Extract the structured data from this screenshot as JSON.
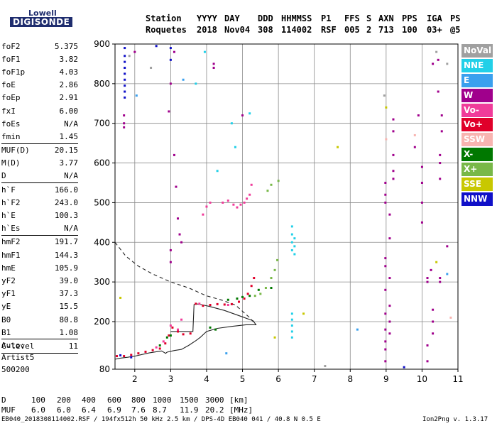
{
  "logo": {
    "line1": "Lowell",
    "line2": "DIGISONDE"
  },
  "header": {
    "labels": [
      "Station",
      "YYYY",
      "DAY",
      "DDD",
      "HHMMSS",
      "P1",
      "FFS",
      "S",
      "AXN",
      "PPS",
      "IGA",
      "PS"
    ],
    "values": [
      "Roquetes",
      "2018",
      "Nov04",
      "308",
      "114002",
      "RSF",
      "005",
      "2",
      "713",
      "100",
      "03+",
      "@5"
    ]
  },
  "params": [
    {
      "name": "foF2",
      "value": "5.375"
    },
    {
      "name": "foF1",
      "value": "3.82"
    },
    {
      "name": "foF1p",
      "value": "4.03"
    },
    {
      "name": "foE",
      "value": "2.86"
    },
    {
      "name": "foEp",
      "value": "2.91"
    },
    {
      "name": "fxI",
      "value": "6.00"
    },
    {
      "name": "foEs",
      "value": "N/A"
    },
    {
      "name": "fmin",
      "value": "1.45",
      "sep": true
    },
    {
      "name": "MUF(D)",
      "value": "20.15"
    },
    {
      "name": "M(D)",
      "value": "3.77"
    },
    {
      "name": "D",
      "value": "N/A",
      "sep": true
    },
    {
      "name": "h`F",
      "value": "166.0"
    },
    {
      "name": "h`F2",
      "value": "243.0"
    },
    {
      "name": "h`E",
      "value": "100.3"
    },
    {
      "name": "h`Es",
      "value": "N/A",
      "sep": true
    },
    {
      "name": "hmF2",
      "value": "191.7"
    },
    {
      "name": "hmF1",
      "value": "144.3"
    },
    {
      "name": "hmE",
      "value": "105.9"
    },
    {
      "name": "yF2",
      "value": "39.0"
    },
    {
      "name": "yF1",
      "value": "37.3"
    },
    {
      "name": "yE",
      "value": "15.5"
    },
    {
      "name": "B0",
      "value": "80.8"
    },
    {
      "name": "B1",
      "value": "1.08",
      "sep": true
    },
    {
      "name": "C-level",
      "value": "11",
      "sep": true
    }
  ],
  "auto": {
    "line1": "Auto:",
    "line2": "Artist5",
    "line3": "500200"
  },
  "dmuf": {
    "d_label": "D",
    "d_values": [
      "100",
      "200",
      "400",
      "600",
      "800",
      "1000",
      "1500",
      "3000"
    ],
    "d_unit": "[km]",
    "muf_label": "MUF",
    "muf_values": [
      "6.0",
      "6.0",
      "6.4",
      "6.9",
      "7.6",
      "8.7",
      "11.9",
      "20.2"
    ],
    "muf_unit": "[MHz]"
  },
  "footer": {
    "left": "EB040_2018308114002.RSF / 194fx512h 50 kHz 2.5 km / DPS-4D EB040 041 / 40.8 N 0.5 E",
    "right": "Ion2Png v. 1.3.17"
  },
  "legend": [
    {
      "label": "NoVal",
      "color": "#a0a0a0"
    },
    {
      "label": "NNE",
      "color": "#22d0e8"
    },
    {
      "label": "E",
      "color": "#3aa0ee"
    },
    {
      "label": "W",
      "color": "#a0008c"
    },
    {
      "label": "Vo-",
      "color": "#f03c9a"
    },
    {
      "label": "Vo+",
      "color": "#e0002a"
    },
    {
      "label": "SSW",
      "color": "#f8b4b0"
    },
    {
      "label": "X-",
      "color": "#007800"
    },
    {
      "label": "X+",
      "color": "#78b848"
    },
    {
      "label": "SSE",
      "color": "#c8c800"
    },
    {
      "label": "NNW",
      "color": "#1010c8"
    }
  ],
  "chart_data": {
    "type": "scatter",
    "xlim": [
      1.45,
      11.0
    ],
    "ylim": [
      80,
      900
    ],
    "x_ticks": [
      2,
      3,
      4,
      5,
      6,
      7,
      8,
      9,
      10,
      11
    ],
    "y_ticks": [
      80,
      200,
      300,
      400,
      500,
      600,
      700,
      800,
      900
    ],
    "grid": true,
    "series": [
      {
        "color": "#e0002a",
        "points": [
          [
            1.5,
            113
          ],
          [
            1.7,
            113
          ],
          [
            1.9,
            116
          ],
          [
            2.1,
            120
          ],
          [
            2.3,
            124
          ],
          [
            2.5,
            128
          ],
          [
            2.7,
            132
          ],
          [
            2.85,
            145
          ],
          [
            2.95,
            165
          ],
          [
            3.05,
            185
          ],
          [
            3.2,
            175
          ],
          [
            3.35,
            168
          ],
          [
            3.55,
            170
          ],
          [
            3.7,
            245
          ],
          [
            3.9,
            240
          ],
          [
            4.1,
            242
          ],
          [
            4.3,
            244
          ],
          [
            4.5,
            243
          ],
          [
            4.7,
            244
          ],
          [
            4.9,
            250
          ],
          [
            5.05,
            258
          ],
          [
            5.15,
            270
          ],
          [
            5.25,
            290
          ],
          [
            5.32,
            310
          ]
        ]
      },
      {
        "color": "#f03c9a",
        "points": [
          [
            2.6,
            135
          ],
          [
            2.8,
            150
          ],
          [
            3.0,
            190
          ],
          [
            3.2,
            180
          ],
          [
            3.3,
            205
          ],
          [
            3.8,
            245
          ],
          [
            4.6,
            242
          ],
          [
            4.85,
            488
          ],
          [
            4.95,
            495
          ],
          [
            5.05,
            500
          ],
          [
            5.12,
            510
          ],
          [
            5.2,
            520
          ],
          [
            5.25,
            545
          ],
          [
            4.45,
            500
          ],
          [
            4.6,
            505
          ],
          [
            4.75,
            495
          ],
          [
            3.9,
            470
          ],
          [
            4.0,
            490
          ],
          [
            4.1,
            500
          ]
        ]
      },
      {
        "color": "#007800",
        "points": [
          [
            2.7,
            140
          ],
          [
            2.9,
            160
          ],
          [
            3.0,
            165
          ],
          [
            4.1,
            185
          ],
          [
            4.25,
            180
          ],
          [
            4.6,
            255
          ],
          [
            4.85,
            258
          ],
          [
            5.0,
            262
          ],
          [
            5.2,
            265
          ],
          [
            5.45,
            280
          ],
          [
            5.8,
            285
          ]
        ]
      },
      {
        "color": "#78b848",
        "points": [
          [
            5.35,
            265
          ],
          [
            5.5,
            270
          ],
          [
            5.65,
            285
          ],
          [
            5.8,
            310
          ],
          [
            5.9,
            330
          ],
          [
            5.97,
            355
          ],
          [
            5.7,
            530
          ],
          [
            5.8,
            545
          ],
          [
            6.0,
            555
          ]
        ]
      },
      {
        "color": "#22d0e8",
        "points": [
          [
            6.38,
            160
          ],
          [
            6.38,
            175
          ],
          [
            6.38,
            190
          ],
          [
            6.38,
            205
          ],
          [
            6.38,
            220
          ],
          [
            6.38,
            380
          ],
          [
            6.38,
            400
          ],
          [
            6.38,
            420
          ],
          [
            6.38,
            440
          ],
          [
            6.45,
            370
          ],
          [
            6.45,
            390
          ],
          [
            6.45,
            410
          ],
          [
            5.2,
            725
          ],
          [
            4.8,
            640
          ],
          [
            4.7,
            700
          ],
          [
            4.3,
            580
          ],
          [
            3.7,
            800
          ],
          [
            3.95,
            880
          ]
        ]
      },
      {
        "color": "#a0008c",
        "points": [
          [
            8.98,
            100
          ],
          [
            8.98,
            130
          ],
          [
            8.98,
            150
          ],
          [
            8.98,
            180
          ],
          [
            8.98,
            220
          ],
          [
            8.98,
            280
          ],
          [
            8.98,
            340
          ],
          [
            8.98,
            360
          ],
          [
            8.98,
            500
          ],
          [
            8.98,
            520
          ],
          [
            8.98,
            550
          ],
          [
            9.1,
            170
          ],
          [
            9.1,
            200
          ],
          [
            9.1,
            240
          ],
          [
            9.1,
            310
          ],
          [
            9.1,
            410
          ],
          [
            9.1,
            470
          ],
          [
            9.2,
            560
          ],
          [
            9.2,
            580
          ],
          [
            9.2,
            620
          ],
          [
            9.2,
            680
          ],
          [
            9.2,
            710
          ],
          [
            10.0,
            590
          ],
          [
            10.0,
            550
          ],
          [
            10.0,
            500
          ],
          [
            10.0,
            450
          ],
          [
            10.15,
            300
          ],
          [
            10.15,
            310
          ],
          [
            10.15,
            100
          ],
          [
            10.15,
            140
          ],
          [
            10.3,
            170
          ],
          [
            10.3,
            200
          ],
          [
            10.3,
            230
          ],
          [
            10.25,
            330
          ],
          [
            10.5,
            300
          ],
          [
            10.5,
            310
          ],
          [
            10.5,
            560
          ],
          [
            10.5,
            600
          ],
          [
            10.5,
            620
          ],
          [
            10.55,
            680
          ],
          [
            10.55,
            720
          ],
          [
            10.45,
            780
          ],
          [
            10.45,
            860
          ],
          [
            10.7,
            390
          ],
          [
            10.3,
            850
          ],
          [
            9.9,
            720
          ],
          [
            9.8,
            640
          ],
          [
            1.7,
            700
          ],
          [
            1.7,
            690
          ],
          [
            1.7,
            720
          ],
          [
            3.1,
            620
          ],
          [
            3.15,
            540
          ],
          [
            3.2,
            460
          ],
          [
            3.25,
            420
          ],
          [
            3.3,
            400
          ],
          [
            3.0,
            380
          ],
          [
            3.0,
            350
          ],
          [
            4.2,
            850
          ],
          [
            4.2,
            840
          ],
          [
            5.0,
            720
          ],
          [
            2.95,
            730
          ],
          [
            3.0,
            800
          ],
          [
            3.1,
            880
          ],
          [
            2.0,
            880
          ]
        ]
      },
      {
        "color": "#1010c8",
        "points": [
          [
            1.72,
            890
          ],
          [
            1.72,
            870
          ],
          [
            1.72,
            855
          ],
          [
            1.72,
            840
          ],
          [
            1.72,
            825
          ],
          [
            1.72,
            810
          ],
          [
            1.72,
            795
          ],
          [
            1.72,
            780
          ],
          [
            1.72,
            765
          ],
          [
            3.0,
            890
          ],
          [
            3.0,
            860
          ],
          [
            2.6,
            895
          ],
          [
            9.5,
            85
          ],
          [
            1.9,
            110
          ],
          [
            1.6,
            115
          ]
        ]
      },
      {
        "color": "#a0a0a0",
        "points": [
          [
            2.45,
            840
          ],
          [
            1.85,
            870
          ],
          [
            8.95,
            770
          ],
          [
            10.4,
            880
          ],
          [
            7.3,
            88
          ],
          [
            10.7,
            850
          ]
        ]
      },
      {
        "color": "#c8c800",
        "points": [
          [
            9.0,
            740
          ],
          [
            7.65,
            640
          ],
          [
            1.6,
            260
          ],
          [
            5.9,
            160
          ],
          [
            6.7,
            220
          ],
          [
            10.4,
            350
          ]
        ]
      },
      {
        "color": "#3aa0ee",
        "points": [
          [
            2.05,
            770
          ],
          [
            3.35,
            810
          ],
          [
            8.2,
            180
          ],
          [
            10.7,
            320
          ],
          [
            4.55,
            120
          ]
        ]
      },
      {
        "color": "#f8b4b0",
        "points": [
          [
            9.0,
            660
          ],
          [
            9.8,
            670
          ],
          [
            10.8,
            210
          ]
        ]
      }
    ],
    "lines": [
      {
        "name": "profile",
        "style": "solid",
        "points": [
          [
            1.45,
            105
          ],
          [
            1.6,
            108
          ],
          [
            1.8,
            110
          ],
          [
            2.0,
            113
          ],
          [
            2.2,
            117
          ],
          [
            2.4,
            121
          ],
          [
            2.6,
            124
          ],
          [
            2.75,
            126
          ],
          [
            2.86,
            120
          ],
          [
            2.9,
            123
          ],
          [
            3.1,
            127
          ],
          [
            3.3,
            130
          ],
          [
            3.5,
            140
          ],
          [
            3.7,
            152
          ],
          [
            3.82,
            160
          ],
          [
            4.0,
            175
          ],
          [
            4.3,
            183
          ],
          [
            4.7,
            188
          ],
          [
            5.1,
            192
          ],
          [
            5.375,
            192
          ],
          [
            5.3,
            202
          ],
          [
            5.0,
            212
          ],
          [
            4.5,
            228
          ],
          [
            4.1,
            238
          ],
          [
            3.85,
            243
          ],
          [
            3.7,
            245
          ],
          [
            3.65,
            243
          ],
          [
            3.62,
            175
          ],
          [
            3.0,
            175
          ]
        ]
      },
      {
        "name": "dashed",
        "style": "dashed",
        "points": [
          [
            1.45,
            400
          ],
          [
            1.75,
            365
          ],
          [
            2.1,
            340
          ],
          [
            2.5,
            320
          ],
          [
            3.0,
            300
          ],
          [
            3.5,
            285
          ],
          [
            4.0,
            265
          ],
          [
            4.4,
            255
          ],
          [
            4.8,
            242
          ],
          [
            5.2,
            210
          ],
          [
            5.375,
            192
          ]
        ]
      }
    ]
  }
}
